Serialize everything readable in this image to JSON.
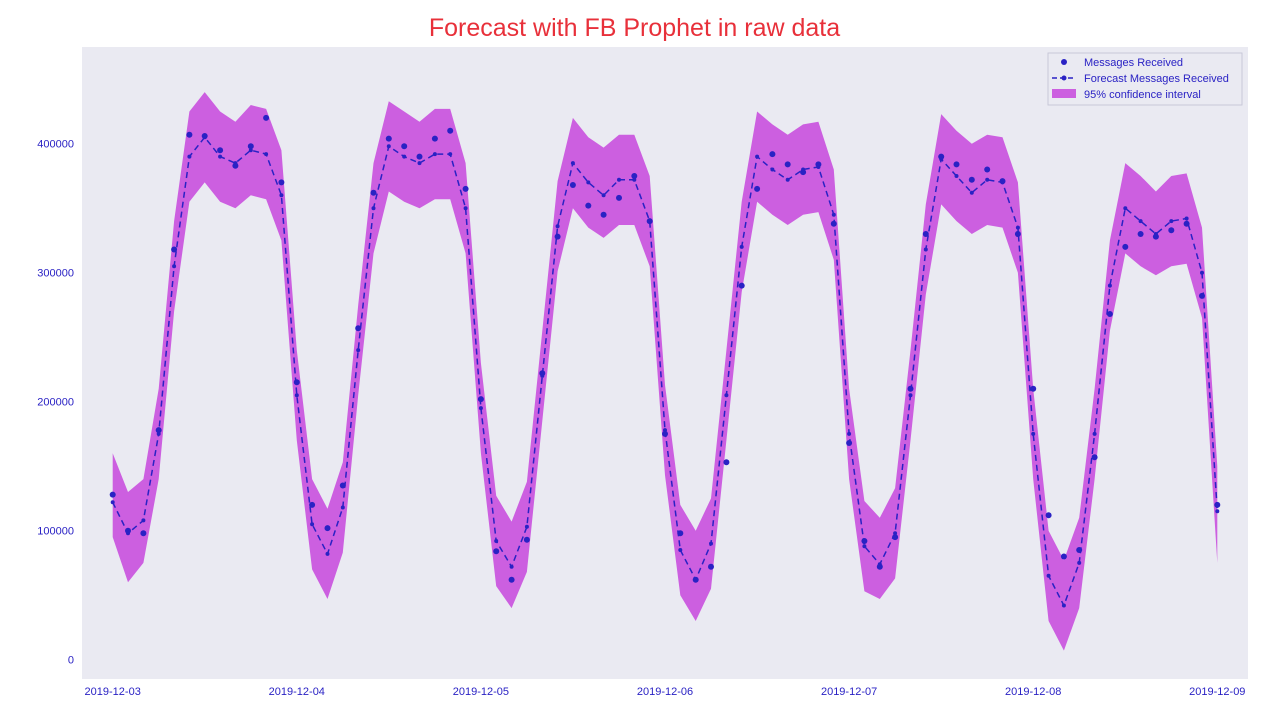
{
  "chart_data": {
    "type": "line",
    "title": "Forecast with FB Prophet in raw data",
    "xlabel": "",
    "ylabel": "",
    "x_range": [
      "2019-12-02 20:00",
      "2019-12-09 04:00"
    ],
    "ylim": [
      -15000,
      475000
    ],
    "x_ticks": [
      "2019-12-03",
      "2019-12-04",
      "2019-12-05",
      "2019-12-06",
      "2019-12-07",
      "2019-12-08",
      "2019-12-09"
    ],
    "y_ticks": [
      0,
      100000,
      200000,
      300000,
      400000
    ],
    "grid": false,
    "legend_position": "top-right",
    "colors": {
      "plot_background": "#eaeaf2",
      "points": "#2a22c4",
      "forecast_line": "#2a22c4",
      "confidence_band": "#cc5fe0",
      "title": "#e8303a",
      "tick_labels": "#2a22c4"
    },
    "series": [
      {
        "name": "Messages Received",
        "kind": "scatter",
        "x": [
          "2019-12-03 00:00",
          "2019-12-03 02:00",
          "2019-12-03 04:00",
          "2019-12-03 06:00",
          "2019-12-03 08:00",
          "2019-12-03 10:00",
          "2019-12-03 12:00",
          "2019-12-03 14:00",
          "2019-12-03 16:00",
          "2019-12-03 18:00",
          "2019-12-03 20:00",
          "2019-12-03 22:00",
          "2019-12-04 00:00",
          "2019-12-04 02:00",
          "2019-12-04 04:00",
          "2019-12-04 06:00",
          "2019-12-04 08:00",
          "2019-12-04 10:00",
          "2019-12-04 12:00",
          "2019-12-04 14:00",
          "2019-12-04 16:00",
          "2019-12-04 18:00",
          "2019-12-04 20:00",
          "2019-12-04 22:00",
          "2019-12-05 00:00",
          "2019-12-05 02:00",
          "2019-12-05 04:00",
          "2019-12-05 06:00",
          "2019-12-05 08:00",
          "2019-12-05 10:00",
          "2019-12-05 12:00",
          "2019-12-05 14:00",
          "2019-12-05 16:00",
          "2019-12-05 18:00",
          "2019-12-05 20:00",
          "2019-12-05 22:00",
          "2019-12-06 00:00",
          "2019-12-06 02:00",
          "2019-12-06 04:00",
          "2019-12-06 06:00",
          "2019-12-06 08:00",
          "2019-12-06 10:00",
          "2019-12-06 12:00",
          "2019-12-06 14:00",
          "2019-12-06 16:00",
          "2019-12-06 18:00",
          "2019-12-06 20:00",
          "2019-12-06 22:00",
          "2019-12-07 00:00",
          "2019-12-07 02:00",
          "2019-12-07 04:00",
          "2019-12-07 06:00",
          "2019-12-07 08:00",
          "2019-12-07 10:00",
          "2019-12-07 12:00",
          "2019-12-07 14:00",
          "2019-12-07 16:00",
          "2019-12-07 18:00",
          "2019-12-07 20:00",
          "2019-12-07 22:00",
          "2019-12-08 00:00",
          "2019-12-08 02:00",
          "2019-12-08 04:00",
          "2019-12-08 06:00",
          "2019-12-08 08:00",
          "2019-12-08 10:00",
          "2019-12-08 12:00",
          "2019-12-08 14:00",
          "2019-12-08 16:00",
          "2019-12-08 18:00",
          "2019-12-08 20:00",
          "2019-12-08 22:00",
          "2019-12-09 00:00"
        ],
        "y": [
          128000,
          100000,
          98000,
          178000,
          318000,
          407000,
          406000,
          395000,
          383000,
          398000,
          420000,
          370000,
          215000,
          120000,
          102000,
          135000,
          257000,
          362000,
          404000,
          398000,
          390000,
          404000,
          410000,
          365000,
          202000,
          84000,
          62000,
          93000,
          222000,
          328000,
          368000,
          352000,
          345000,
          358000,
          375000,
          340000,
          175000,
          98000,
          62000,
          72000,
          153000,
          290000,
          365000,
          392000,
          384000,
          378000,
          384000,
          338000,
          168000,
          92000,
          72000,
          95000,
          210000,
          330000,
          390000,
          384000,
          372000,
          380000,
          371000,
          330000,
          210000,
          112000,
          80000,
          85000,
          157000,
          268000,
          320000,
          330000,
          328000,
          333000,
          338000,
          282000,
          120000
        ]
      },
      {
        "name": "Forecast Messages Received",
        "kind": "line",
        "dash": true,
        "x": [
          "2019-12-03 00:00",
          "2019-12-03 02:00",
          "2019-12-03 04:00",
          "2019-12-03 06:00",
          "2019-12-03 08:00",
          "2019-12-03 10:00",
          "2019-12-03 12:00",
          "2019-12-03 14:00",
          "2019-12-03 16:00",
          "2019-12-03 18:00",
          "2019-12-03 20:00",
          "2019-12-03 22:00",
          "2019-12-04 00:00",
          "2019-12-04 02:00",
          "2019-12-04 04:00",
          "2019-12-04 06:00",
          "2019-12-04 08:00",
          "2019-12-04 10:00",
          "2019-12-04 12:00",
          "2019-12-04 14:00",
          "2019-12-04 16:00",
          "2019-12-04 18:00",
          "2019-12-04 20:00",
          "2019-12-04 22:00",
          "2019-12-05 00:00",
          "2019-12-05 02:00",
          "2019-12-05 04:00",
          "2019-12-05 06:00",
          "2019-12-05 08:00",
          "2019-12-05 10:00",
          "2019-12-05 12:00",
          "2019-12-05 14:00",
          "2019-12-05 16:00",
          "2019-12-05 18:00",
          "2019-12-05 20:00",
          "2019-12-05 22:00",
          "2019-12-06 00:00",
          "2019-12-06 02:00",
          "2019-12-06 04:00",
          "2019-12-06 06:00",
          "2019-12-06 08:00",
          "2019-12-06 10:00",
          "2019-12-06 12:00",
          "2019-12-06 14:00",
          "2019-12-06 16:00",
          "2019-12-06 18:00",
          "2019-12-06 20:00",
          "2019-12-06 22:00",
          "2019-12-07 00:00",
          "2019-12-07 02:00",
          "2019-12-07 04:00",
          "2019-12-07 06:00",
          "2019-12-07 08:00",
          "2019-12-07 10:00",
          "2019-12-07 12:00",
          "2019-12-07 14:00",
          "2019-12-07 16:00",
          "2019-12-07 18:00",
          "2019-12-07 20:00",
          "2019-12-07 22:00",
          "2019-12-08 00:00",
          "2019-12-08 02:00",
          "2019-12-08 04:00",
          "2019-12-08 06:00",
          "2019-12-08 08:00",
          "2019-12-08 10:00",
          "2019-12-08 12:00",
          "2019-12-08 14:00",
          "2019-12-08 16:00",
          "2019-12-08 18:00",
          "2019-12-08 20:00",
          "2019-12-08 22:00",
          "2019-12-09 00:00"
        ],
        "y": [
          122000,
          98000,
          108000,
          175000,
          305000,
          390000,
          405000,
          390000,
          385000,
          395000,
          392000,
          360000,
          205000,
          105000,
          82000,
          118000,
          240000,
          350000,
          398000,
          390000,
          385000,
          392000,
          392000,
          350000,
          195000,
          92000,
          72000,
          103000,
          220000,
          336000,
          385000,
          370000,
          360000,
          372000,
          372000,
          340000,
          178000,
          85000,
          62000,
          90000,
          205000,
          320000,
          390000,
          380000,
          372000,
          380000,
          382000,
          345000,
          175000,
          88000,
          74000,
          98000,
          205000,
          318000,
          388000,
          375000,
          362000,
          372000,
          370000,
          335000,
          175000,
          65000,
          42000,
          75000,
          175000,
          290000,
          350000,
          340000,
          330000,
          340000,
          342000,
          300000,
          115000
        ]
      },
      {
        "name": "95% confidence interval",
        "kind": "band",
        "x": [
          "2019-12-03 00:00",
          "2019-12-03 02:00",
          "2019-12-03 04:00",
          "2019-12-03 06:00",
          "2019-12-03 08:00",
          "2019-12-03 10:00",
          "2019-12-03 12:00",
          "2019-12-03 14:00",
          "2019-12-03 16:00",
          "2019-12-03 18:00",
          "2019-12-03 20:00",
          "2019-12-03 22:00",
          "2019-12-04 00:00",
          "2019-12-04 02:00",
          "2019-12-04 04:00",
          "2019-12-04 06:00",
          "2019-12-04 08:00",
          "2019-12-04 10:00",
          "2019-12-04 12:00",
          "2019-12-04 14:00",
          "2019-12-04 16:00",
          "2019-12-04 18:00",
          "2019-12-04 20:00",
          "2019-12-04 22:00",
          "2019-12-05 00:00",
          "2019-12-05 02:00",
          "2019-12-05 04:00",
          "2019-12-05 06:00",
          "2019-12-05 08:00",
          "2019-12-05 10:00",
          "2019-12-05 12:00",
          "2019-12-05 14:00",
          "2019-12-05 16:00",
          "2019-12-05 18:00",
          "2019-12-05 20:00",
          "2019-12-05 22:00",
          "2019-12-06 00:00",
          "2019-12-06 02:00",
          "2019-12-06 04:00",
          "2019-12-06 06:00",
          "2019-12-06 08:00",
          "2019-12-06 10:00",
          "2019-12-06 12:00",
          "2019-12-06 14:00",
          "2019-12-06 16:00",
          "2019-12-06 18:00",
          "2019-12-06 20:00",
          "2019-12-06 22:00",
          "2019-12-07 00:00",
          "2019-12-07 02:00",
          "2019-12-07 04:00",
          "2019-12-07 06:00",
          "2019-12-07 08:00",
          "2019-12-07 10:00",
          "2019-12-07 12:00",
          "2019-12-07 14:00",
          "2019-12-07 16:00",
          "2019-12-07 18:00",
          "2019-12-07 20:00",
          "2019-12-07 22:00",
          "2019-12-08 00:00",
          "2019-12-08 02:00",
          "2019-12-08 04:00",
          "2019-12-08 06:00",
          "2019-12-08 08:00",
          "2019-12-08 10:00",
          "2019-12-08 12:00",
          "2019-12-08 14:00",
          "2019-12-08 16:00",
          "2019-12-08 18:00",
          "2019-12-08 20:00",
          "2019-12-08 22:00",
          "2019-12-09 00:00"
        ],
        "lower": [
          95000,
          60000,
          75000,
          140000,
          270000,
          355000,
          370000,
          355000,
          350000,
          360000,
          357000,
          325000,
          170000,
          70000,
          47000,
          83000,
          205000,
          315000,
          363000,
          355000,
          350000,
          357000,
          357000,
          315000,
          160000,
          57000,
          40000,
          68000,
          185000,
          301000,
          350000,
          335000,
          327000,
          337000,
          337000,
          305000,
          143000,
          50000,
          30000,
          55000,
          170000,
          285000,
          355000,
          345000,
          337000,
          345000,
          347000,
          310000,
          140000,
          53000,
          47000,
          63000,
          170000,
          283000,
          353000,
          340000,
          330000,
          337000,
          335000,
          300000,
          140000,
          30000,
          7000,
          40000,
          140000,
          255000,
          315000,
          305000,
          298000,
          305000,
          307000,
          265000,
          75000
        ],
        "upper": [
          160000,
          130000,
          140000,
          210000,
          340000,
          425000,
          440000,
          425000,
          417000,
          430000,
          427000,
          395000,
          240000,
          140000,
          117000,
          153000,
          275000,
          385000,
          433000,
          425000,
          417000,
          427000,
          427000,
          385000,
          230000,
          127000,
          107000,
          138000,
          255000,
          371000,
          420000,
          405000,
          397000,
          407000,
          407000,
          375000,
          213000,
          120000,
          100000,
          125000,
          240000,
          355000,
          425000,
          415000,
          407000,
          415000,
          417000,
          380000,
          210000,
          123000,
          110000,
          133000,
          240000,
          353000,
          423000,
          410000,
          400000,
          407000,
          405000,
          370000,
          210000,
          100000,
          77000,
          110000,
          210000,
          325000,
          385000,
          375000,
          363000,
          375000,
          377000,
          335000,
          150000
        ]
      }
    ],
    "legend": [
      "Messages Received",
      "Forecast Messages Received",
      "95% confidence interval"
    ]
  }
}
